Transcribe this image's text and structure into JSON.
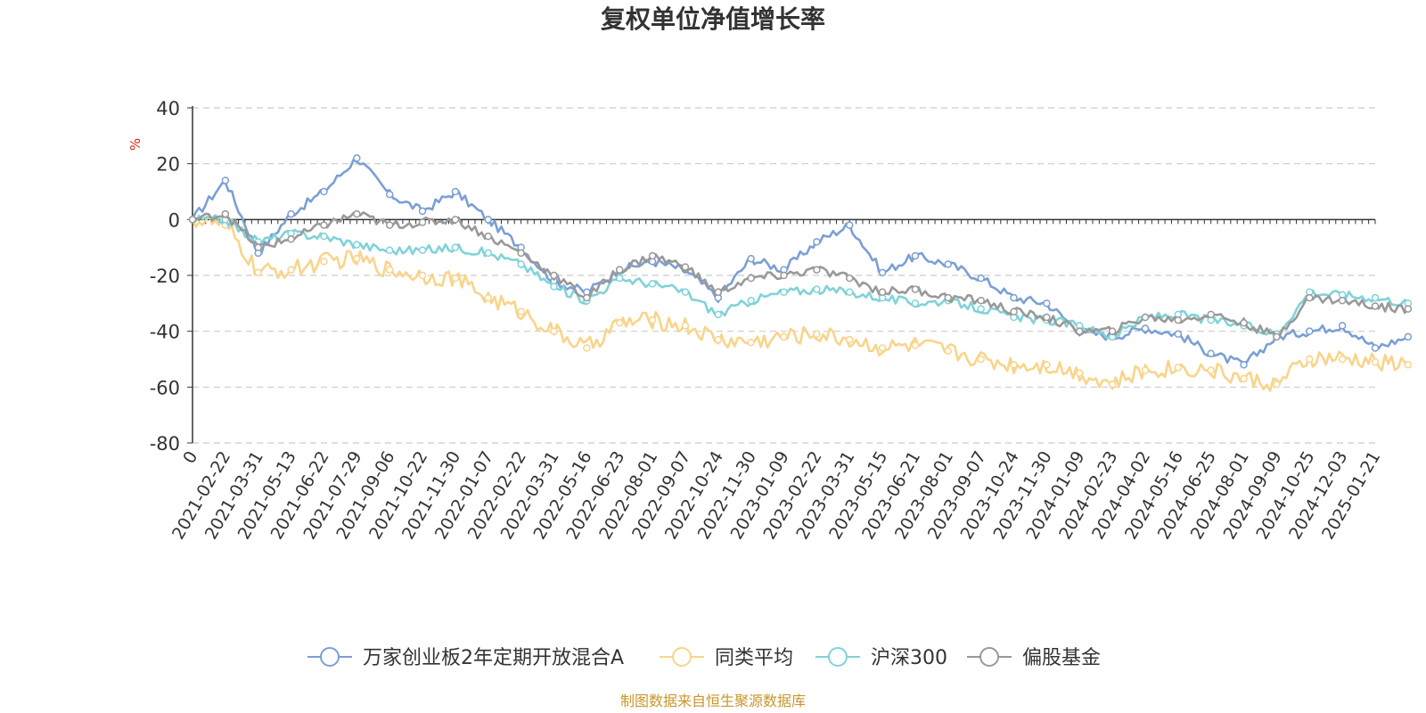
{
  "chart_data": {
    "type": "line",
    "title": "复权单位净值增长率",
    "ylabel": "%",
    "ylim": [
      -80,
      40
    ],
    "yticks": [
      40,
      20,
      0,
      -20,
      -40,
      -60,
      -80
    ],
    "x_ticks": [
      "0",
      "2021-02-22",
      "2021-03-31",
      "2021-05-13",
      "2021-06-22",
      "2021-07-29",
      "2021-09-06",
      "2021-10-22",
      "2021-11-30",
      "2022-01-07",
      "2022-02-22",
      "2022-03-31",
      "2022-05-16",
      "2022-06-23",
      "2022-08-01",
      "2022-09-07",
      "2022-10-24",
      "2022-11-30",
      "2023-01-09",
      "2023-02-22",
      "2023-03-31",
      "2023-05-15",
      "2023-06-21",
      "2023-08-01",
      "2023-09-07",
      "2023-10-24",
      "2023-11-30",
      "2024-01-09",
      "2024-02-23",
      "2024-04-02",
      "2024-05-16",
      "2024-06-25",
      "2024-08-01",
      "2024-09-09",
      "2024-10-25",
      "2024-12-03",
      "2025-01-21"
    ],
    "series": [
      {
        "name": "万家创业板2年定期开放混合A",
        "color": "#7b9fd4",
        "values": [
          0,
          14,
          -12,
          2,
          10,
          22,
          9,
          3,
          10,
          0,
          -10,
          -22,
          -26,
          -18,
          -15,
          -18,
          -28,
          -14,
          -18,
          -8,
          -2,
          -19,
          -13,
          -16,
          -21,
          -28,
          -30,
          -40,
          -42,
          -39,
          -41,
          -48,
          -52,
          -42,
          -40,
          -38,
          -46,
          -42
        ]
      },
      {
        "name": "同类平均",
        "color": "#f9d48a",
        "values": [
          0,
          -2,
          -19,
          -18,
          -15,
          -14,
          -18,
          -20,
          -21,
          -28,
          -33,
          -40,
          -46,
          -37,
          -36,
          -38,
          -43,
          -44,
          -42,
          -41,
          -43,
          -46,
          -45,
          -47,
          -50,
          -52,
          -52,
          -55,
          -59,
          -54,
          -53,
          -54,
          -57,
          -59,
          -50,
          -50,
          -51,
          -52
        ]
      },
      {
        "name": "沪深300",
        "color": "#7fd3d8",
        "values": [
          0,
          0,
          -8,
          -5,
          -6,
          -9,
          -11,
          -11,
          -10,
          -12,
          -16,
          -24,
          -29,
          -21,
          -23,
          -26,
          -34,
          -29,
          -26,
          -25,
          -26,
          -28,
          -30,
          -29,
          -32,
          -35,
          -36,
          -38,
          -42,
          -35,
          -34,
          -36,
          -38,
          -41,
          -26,
          -27,
          -28,
          -30
        ]
      },
      {
        "name": "偏股基金",
        "color": "#999999",
        "values": [
          0,
          2,
          -10,
          -7,
          -2,
          2,
          -2,
          -1,
          0,
          -6,
          -12,
          -20,
          -28,
          -18,
          -13,
          -17,
          -26,
          -21,
          -20,
          -18,
          -21,
          -26,
          -25,
          -28,
          -29,
          -33,
          -35,
          -40,
          -40,
          -35,
          -36,
          -34,
          -37,
          -42,
          -28,
          -29,
          -31,
          -32
        ]
      }
    ],
    "legend_position": "bottom-center"
  },
  "source_text": "制图数据来自恒生聚源数据库"
}
